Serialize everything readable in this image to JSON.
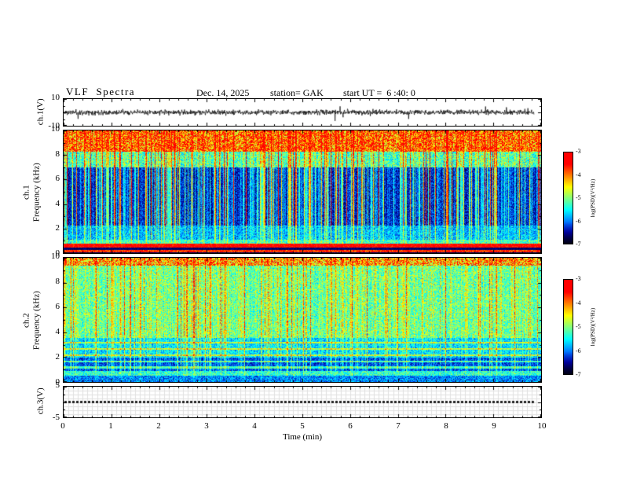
{
  "header": {
    "title": "VLF  Spectra",
    "date": "Dec. 14, 2025",
    "station": "station= GAK",
    "start_ut": "start UT =  6 :40: 0"
  },
  "axes": {
    "xlabel": "Time (min)",
    "xlim": [
      0,
      10
    ],
    "xticks": [
      0,
      1,
      2,
      3,
      4,
      5,
      6,
      7,
      8,
      9,
      10
    ]
  },
  "panels": {
    "ch1_wave": {
      "ylabel": "ch.1(V)",
      "ylim": [
        -10,
        10
      ],
      "yticks": [
        10,
        -10
      ]
    },
    "ch1_spec": {
      "ylabel_line1": "ch.1",
      "ylabel_line2": "Frequency (kHz)",
      "ylim": [
        0,
        10
      ],
      "yticks": [
        10,
        8,
        6,
        4,
        2,
        0
      ]
    },
    "ch2_spec": {
      "ylabel_line1": "ch.2",
      "ylabel_line2": "Frequency (kHz)",
      "ylim": [
        0,
        10
      ],
      "yticks": [
        10,
        8,
        6,
        4,
        2,
        0
      ]
    },
    "ch3_wave": {
      "ylabel": "ch.3(V)",
      "ylim": [
        -5,
        5
      ],
      "yticks": [
        5,
        -5
      ]
    }
  },
  "colorbar": {
    "label": "log(PSD)(V²/Hz)",
    "ticks": [
      -3,
      -4,
      -5,
      -6,
      -7
    ],
    "lim": [
      -7,
      -3
    ]
  },
  "chart_data": [
    {
      "type": "line",
      "name": "ch1-waveform",
      "ylabel": "ch.1(V)",
      "ylim": [
        -10,
        10
      ],
      "x_extent_min": [
        0,
        9.85
      ],
      "signal": {
        "kind": "broadband-noise",
        "std_v": 1.3,
        "spike_prob": 0.012,
        "spike_amp_v": 7,
        "seed": 11
      }
    },
    {
      "type": "heatmap",
      "name": "ch1-spectrogram",
      "ylabel": "ch.1 Frequency (kHz)",
      "ylim_khz": [
        0,
        10
      ],
      "xlim_min": [
        0,
        10
      ],
      "value_scale": {
        "label": "log(PSD)(V²/Hz)",
        "min": -7,
        "max": -3,
        "colormap": "jet"
      },
      "model": {
        "seed": 3,
        "streak_prob": 0.16,
        "bands": [
          {
            "fmin": 8.3,
            "base": 0.5,
            "streak": 0.28,
            "noise": 0.45
          },
          {
            "fmin": 7.0,
            "base": 0.25,
            "streak": 0.5,
            "noise": 0.3
          },
          {
            "fmin": 2.3,
            "base": 0.04,
            "streak": 0.75,
            "noise": 0.18
          },
          {
            "fmin": 1.1,
            "base": 0.16,
            "streak": 0.35,
            "noise": 0.22
          },
          {
            "fmin": 0.78,
            "base": 0.28,
            "streak": 0.2,
            "noise": 0.25
          },
          {
            "fmin": 0.5,
            "base": 0.78,
            "streak": 0.05,
            "noise": 0.22
          },
          {
            "fmin": 0.32,
            "base": 0.05,
            "streak": 0.02,
            "noise": 0.08
          },
          {
            "fmin": 0.12,
            "base": 0.7,
            "streak": 0.05,
            "noise": 0.25
          },
          {
            "fmin": -1,
            "base": 0.04,
            "streak": 0.0,
            "noise": 0.06
          }
        ]
      }
    },
    {
      "type": "heatmap",
      "name": "ch2-spectrogram",
      "ylabel": "ch.2 Frequency (kHz)",
      "ylim_khz": [
        0,
        10
      ],
      "xlim_min": [
        0,
        10
      ],
      "value_scale": {
        "label": "log(PSD)(V²/Hz)",
        "min": -7,
        "max": -3,
        "colormap": "jet"
      },
      "model": {
        "seed": 7,
        "streak_prob": 0.13,
        "lines_khz": [
          1.2,
          1.7,
          2.2,
          2.7,
          3.2
        ],
        "bands": [
          {
            "fmin": 9.4,
            "base": 0.45,
            "streak": 0.25,
            "noise": 0.45
          },
          {
            "fmin": 3.6,
            "base": 0.3,
            "streak": 0.35,
            "noise": 0.28
          },
          {
            "fmin": 2.0,
            "base": 0.2,
            "streak": 0.3,
            "noise": 0.22
          },
          {
            "fmin": 0.9,
            "base": 0.1,
            "streak": 0.28,
            "noise": 0.16
          },
          {
            "fmin": 0.55,
            "base": 0.28,
            "streak": 0.1,
            "noise": 0.25
          },
          {
            "fmin": -1,
            "base": 0.15,
            "streak": 0.05,
            "noise": 0.2
          }
        ]
      }
    },
    {
      "type": "line",
      "name": "ch3-waveform",
      "ylabel": "ch.3(V)",
      "ylim": [
        -5,
        5
      ],
      "x_extent_min": [
        0,
        9.85
      ],
      "signal": {
        "kind": "constant",
        "value_v": 0,
        "style": "thick-dashed-black"
      }
    }
  ]
}
